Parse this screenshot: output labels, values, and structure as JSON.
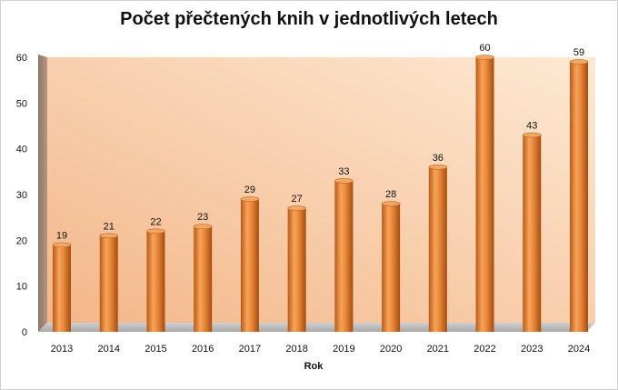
{
  "chart_data": {
    "type": "bar",
    "title": "Počet přečtených knih v jednotlivých letech",
    "xlabel": "Rok",
    "ylabel": "",
    "categories": [
      "2013",
      "2014",
      "2015",
      "2016",
      "2017",
      "2018",
      "2019",
      "2020",
      "2021",
      "2022",
      "2023",
      "2024"
    ],
    "values": [
      19,
      21,
      22,
      23,
      29,
      27,
      33,
      28,
      36,
      60,
      43,
      59
    ],
    "ylim": [
      0,
      60
    ],
    "yticks": [
      0,
      10,
      20,
      30,
      40,
      50,
      60
    ],
    "grid": false,
    "legend": "none",
    "bar_color": "#e8873a",
    "background_gradient": [
      "#f3b688",
      "#fde9d4"
    ]
  }
}
